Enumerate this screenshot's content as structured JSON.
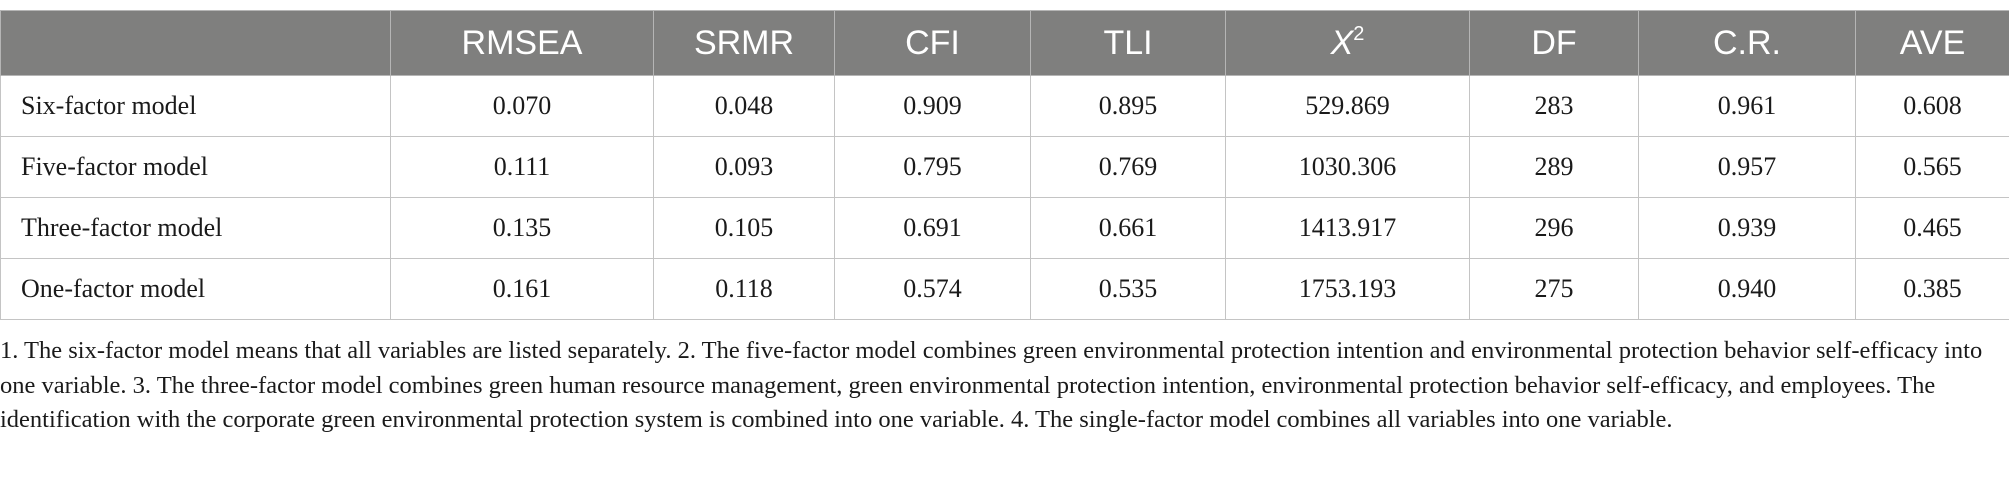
{
  "table": {
    "headers": [
      "",
      "RMSEA",
      "SRMR",
      "CFI",
      "TLI",
      "X",
      "DF",
      "C.R.",
      "AVE"
    ],
    "chi_superscript": "2",
    "rows": [
      {
        "model": "Six-factor model",
        "values": [
          "0.070",
          "0.048",
          "0.909",
          "0.895",
          "529.869",
          "283",
          "0.961",
          "0.608"
        ]
      },
      {
        "model": "Five-factor model",
        "values": [
          "0.111",
          "0.093",
          "0.795",
          "0.769",
          "1030.306",
          "289",
          "0.957",
          "0.565"
        ]
      },
      {
        "model": "Three-factor model",
        "values": [
          "0.135",
          "0.105",
          "0.691",
          "0.661",
          "1413.917",
          "296",
          "0.939",
          "0.465"
        ]
      },
      {
        "model": "One-factor model",
        "values": [
          "0.161",
          "0.118",
          "0.574",
          "0.535",
          "1753.193",
          "275",
          "0.940",
          "0.385"
        ]
      }
    ]
  },
  "footnote": "1. The six-factor model means that all variables are listed separately. 2. The five-factor model combines green environmental protection intention and environmental protection behavior self-efficacy into one variable. 3. The three-factor model combines green human resource management, green environmental protection intention, environmental protection behavior self-efficacy, and employees. The identification with the corporate green environmental protection system is combined into one variable. 4. The single-factor model combines all variables into one variable.",
  "colors": {
    "header_bg": "#7f7f7e",
    "header_text": "#ffffff",
    "grid": "#c4c4c4"
  }
}
